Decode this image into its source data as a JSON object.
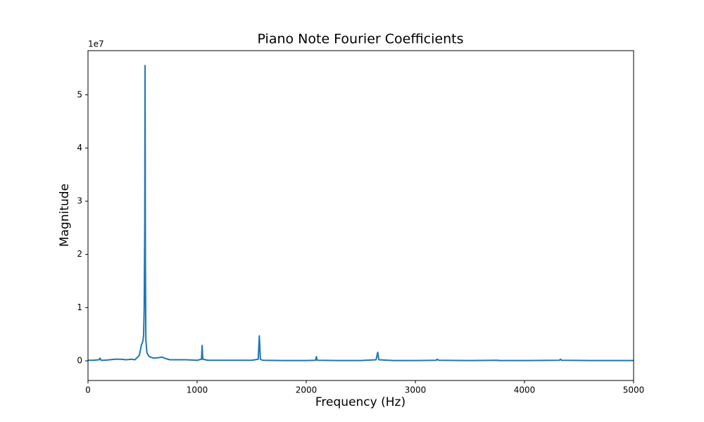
{
  "chart_data": {
    "type": "line",
    "title": "Piano Note Fourier Coefficients",
    "x_label": "Frequency (Hz)",
    "y_label": "Magnitude",
    "y_offset_label": "1e7",
    "x": [
      0,
      50,
      100,
      110,
      120,
      150,
      200,
      250,
      300,
      350,
      400,
      430,
      450,
      470,
      490,
      500,
      505,
      510,
      515,
      520,
      523,
      526,
      530,
      540,
      560,
      600,
      650,
      680,
      700,
      750,
      800,
      900,
      1000,
      1040,
      1046,
      1052,
      1100,
      1200,
      1300,
      1400,
      1500,
      1560,
      1570,
      1580,
      1600,
      1800,
      2000,
      2085,
      2093,
      2100,
      2300,
      2500,
      2640,
      2655,
      2665,
      2800,
      3000,
      3190,
      3200,
      3215,
      3500,
      3760,
      3765,
      4000,
      4320,
      4330,
      4340,
      4600,
      5000
    ],
    "series": [
      {
        "color": "#1f77b4",
        "values": [
          0.01,
          0.01,
          0.02,
          0.05,
          0.01,
          0.01,
          0.02,
          0.03,
          0.03,
          0.02,
          0.03,
          0.02,
          0.06,
          0.1,
          0.3,
          0.35,
          0.4,
          0.5,
          1.0,
          2.5,
          5.55,
          2.0,
          0.4,
          0.15,
          0.08,
          0.05,
          0.06,
          0.07,
          0.05,
          0.02,
          0.02,
          0.02,
          0.01,
          0.03,
          0.29,
          0.03,
          0.01,
          0.01,
          0.01,
          0.01,
          0.01,
          0.03,
          0.47,
          0.03,
          0.01,
          0.005,
          0.005,
          0.01,
          0.08,
          0.01,
          0.005,
          0.005,
          0.02,
          0.16,
          0.02,
          0.005,
          0.005,
          0.01,
          0.03,
          0.01,
          0.005,
          0.01,
          0.005,
          0.005,
          0.01,
          0.03,
          0.01,
          0.005,
          0.005
        ]
      }
    ],
    "xlim": [
      0,
      5000
    ],
    "xticks": [
      0,
      1000,
      2000,
      3000,
      4000,
      5000
    ],
    "ylim": [
      -0.37,
      5.83
    ],
    "yticks": [
      0,
      1,
      2,
      3,
      4,
      5
    ]
  }
}
